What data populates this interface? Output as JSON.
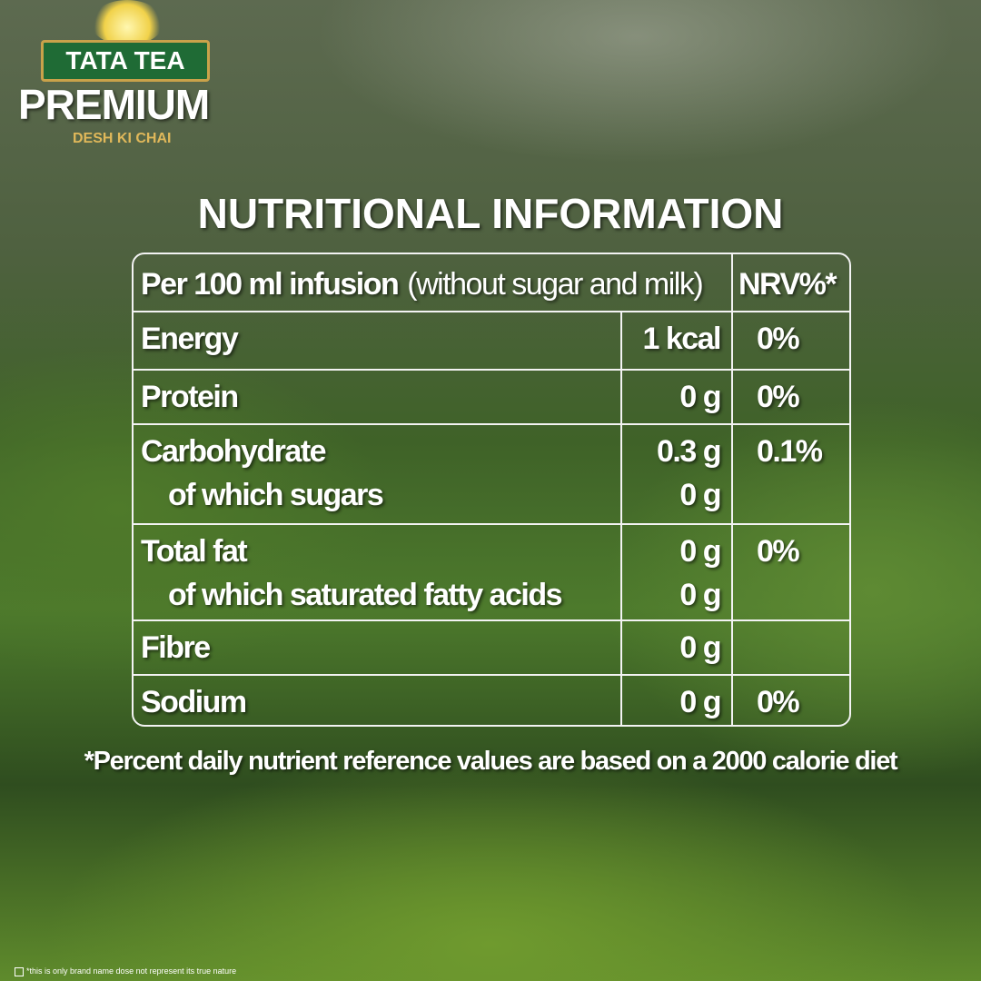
{
  "brand": {
    "name": "TATA TEA",
    "product": "PREMIUM",
    "tagline": "DESH KI CHAI"
  },
  "title": "NUTRITIONAL INFORMATION",
  "table": {
    "header": {
      "basis": "Per 100 ml infusion",
      "note": "(without sugar and milk)",
      "nrv": "NRV%*"
    },
    "rows": [
      {
        "nutrient": "Energy",
        "amount": "1 kcal",
        "nrv": "0%"
      },
      {
        "nutrient": "Protein",
        "amount": "0 g",
        "nrv": "0%"
      },
      {
        "nutrient": "Carbohydrate",
        "amount": "0.3 g",
        "nrv": "0.1%",
        "sub": {
          "nutrient": "of which sugars",
          "amount": "0 g"
        }
      },
      {
        "nutrient": "Total fat",
        "amount": "0 g",
        "nrv": "0%",
        "sub": {
          "nutrient": "of which saturated fatty acids",
          "amount": "0 g"
        }
      },
      {
        "nutrient": "Fibre",
        "amount": "0 g"
      },
      {
        "nutrient": "Sodium",
        "amount": "0 g",
        "nrv": "0%"
      }
    ]
  },
  "footnote": "*Percent daily nutrient reference values are based on a 2000 calorie diet",
  "disclaimer": "*this is only brand name dose not represent its true nature"
}
